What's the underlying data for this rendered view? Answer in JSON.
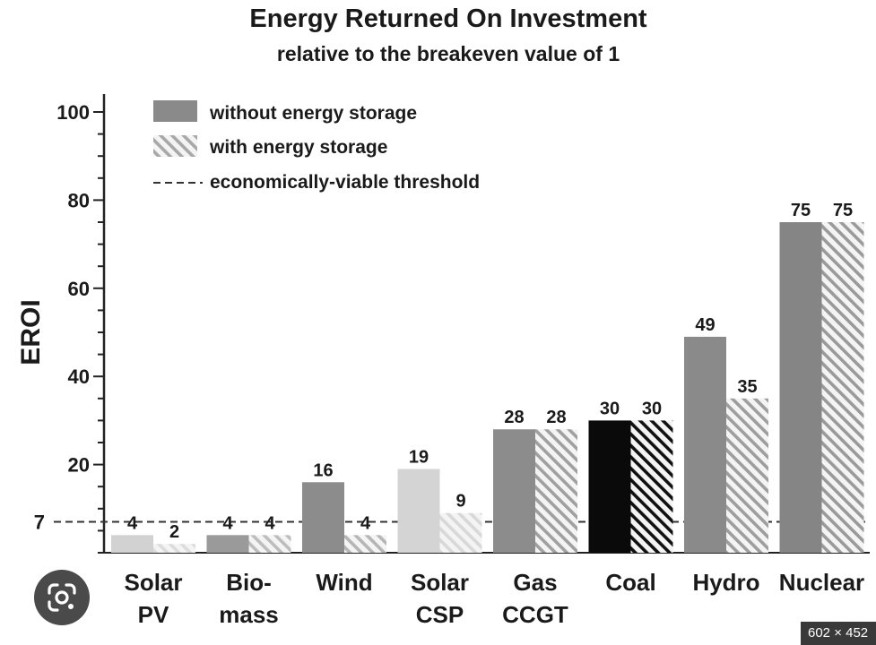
{
  "chart_data": {
    "type": "bar",
    "title": "Energy Returned On Investment",
    "subtitle": "relative to the breakeven value of 1",
    "ylabel": "EROI",
    "ylim": [
      0,
      100
    ],
    "yticks": [
      20,
      40,
      60,
      80,
      100
    ],
    "threshold": {
      "value": 7,
      "label": "7",
      "legend": "economically-viable threshold"
    },
    "categories": [
      [
        "Solar",
        "PV"
      ],
      [
        "Bio-",
        "mass"
      ],
      [
        "Wind"
      ],
      [
        "Solar",
        "CSP"
      ],
      [
        "Gas",
        "CCGT"
      ],
      [
        "Coal"
      ],
      [
        "Hydro"
      ],
      [
        "Nuclear"
      ]
    ],
    "series": [
      {
        "name": "without energy storage",
        "values": [
          4,
          4,
          16,
          19,
          28,
          30,
          49,
          75
        ],
        "labels": [
          "4",
          "4",
          "16",
          "19",
          "28",
          "30",
          "49",
          "75"
        ],
        "colors": [
          "#d2d2d2",
          "#9a9a9a",
          "#8c8c8c",
          "#d4d4d4",
          "#8c8c8c",
          "#0a0a0a",
          "#8a8a8a",
          "#858585"
        ],
        "pattern": "solid"
      },
      {
        "name": "with energy storage",
        "values": [
          2,
          4,
          4,
          9,
          28,
          30,
          35,
          75
        ],
        "labels": [
          "2",
          "4",
          "4",
          "9",
          "28",
          "30",
          "35",
          "75"
        ],
        "colors": [
          "#dcdcdc",
          "#bdbdbd",
          "#b5b5b5",
          "#d8d8d8",
          "#a0a0a0",
          "#111111",
          "#9e9e9e",
          "#9a9a9a"
        ],
        "pattern": "hatched"
      }
    ],
    "legend": {
      "position": "top-left",
      "entries": [
        "without energy storage",
        "with energy storage",
        "economically-viable threshold"
      ]
    },
    "grid": false
  },
  "overlay": {
    "lens_icon": "google-lens-icon",
    "size_badge": "602 × 452"
  }
}
